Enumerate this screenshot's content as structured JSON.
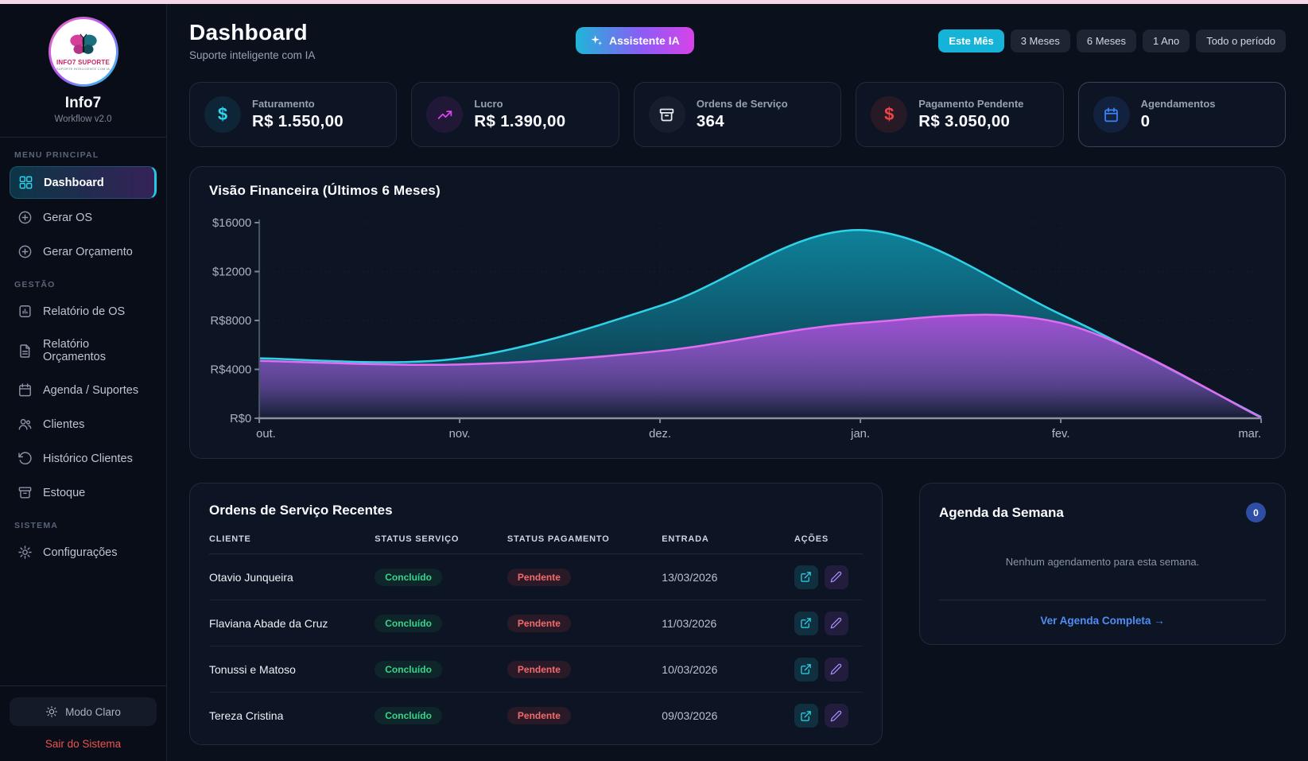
{
  "theme": {
    "top_bar": "#f4d7e9",
    "accent_cyan": "#22c8e6",
    "accent_magenta": "#d946ef",
    "accent_red": "#ef4444",
    "accent_blue": "#3b82f6",
    "success_green": "#35d58b",
    "danger_red": "#f26b6b"
  },
  "sidebar": {
    "logo_line1": "INFO7 SUPORTE",
    "logo_line2": "SUPORTE INTELIGENTE COM IA",
    "brand": "Info7",
    "version": "Workflow v2.0",
    "sections": [
      {
        "label": "MENU PRINCIPAL",
        "items": [
          {
            "label": "Dashboard",
            "icon": "dashboard-grid-icon",
            "active": true
          },
          {
            "label": "Gerar OS",
            "icon": "plus-circle-icon",
            "active": false
          },
          {
            "label": "Gerar Orçamento",
            "icon": "plus-circle-icon",
            "active": false
          }
        ]
      },
      {
        "label": "GESTÃO",
        "items": [
          {
            "label": "Relatório de OS",
            "icon": "report-icon",
            "active": false
          },
          {
            "label": "Relatório Orçamentos",
            "icon": "file-text-icon",
            "active": false
          },
          {
            "label": "Agenda / Suportes",
            "icon": "calendar-icon",
            "active": false
          },
          {
            "label": "Clientes",
            "icon": "users-icon",
            "active": false
          },
          {
            "label": "Histórico Clientes",
            "icon": "history-icon",
            "active": false
          },
          {
            "label": "Estoque",
            "icon": "archive-icon",
            "active": false
          }
        ]
      },
      {
        "label": "SISTEMA",
        "items": [
          {
            "label": "Configurações",
            "icon": "gear-icon",
            "active": false
          }
        ]
      }
    ],
    "theme_toggle": "Modo Claro",
    "logout": "Sair do Sistema"
  },
  "header": {
    "title": "Dashboard",
    "subtitle": "Suporte inteligente com IA",
    "assistant_button": "Assistente IA"
  },
  "filters": {
    "options": [
      {
        "label": "Este Mês",
        "active": true
      },
      {
        "label": "3 Meses",
        "active": false
      },
      {
        "label": "6 Meses",
        "active": false
      },
      {
        "label": "1 Ano",
        "active": false
      },
      {
        "label": "Todo o período",
        "active": false
      }
    ]
  },
  "stats": [
    {
      "label": "Faturamento",
      "value": "R$ 1.550,00",
      "icon": "dollar-icon"
    },
    {
      "label": "Lucro",
      "value": "R$ 1.390,00",
      "icon": "trending-up-icon"
    },
    {
      "label": "Ordens de Serviço",
      "value": "364",
      "icon": "archive-icon"
    },
    {
      "label": "Pagamento Pendente",
      "value": "R$ 3.050,00",
      "icon": "dollar-icon"
    },
    {
      "label": "Agendamentos",
      "value": "0",
      "icon": "calendar-icon"
    }
  ],
  "chart_data": {
    "type": "area",
    "title": "Visão Financeira (Últimos 6 Meses)",
    "x": [
      "out.",
      "nov.",
      "dez.",
      "jan.",
      "fev.",
      "mar."
    ],
    "series": [
      {
        "name": "faturamento",
        "color": "#2fd3e8",
        "fill_top": "#0e87a0",
        "values": [
          4900,
          4900,
          9200,
          15400,
          8500,
          100
        ]
      },
      {
        "name": "lucro",
        "color": "#e06df2",
        "fill_top": "#a94fd6",
        "values": [
          4700,
          4400,
          5500,
          7800,
          7800,
          60
        ]
      }
    ],
    "y_ticks": [
      {
        "value": 0,
        "label": "R$0"
      },
      {
        "value": 4000,
        "label": "R$4000"
      },
      {
        "value": 8000,
        "label": "R$8000"
      },
      {
        "value": 12000,
        "label": "$12000"
      },
      {
        "value": 16000,
        "label": "$16000"
      }
    ],
    "ylim": [
      0,
      16000
    ],
    "grid": "dotted",
    "legend": "none"
  },
  "orders": {
    "title": "Ordens de Serviço Recentes",
    "columns": [
      "CLIENTE",
      "STATUS SERVIÇO",
      "STATUS PAGAMENTO",
      "ENTRADA",
      "AÇÕES"
    ],
    "rows": [
      {
        "cliente": "Otavio Junqueira",
        "status_servico": "Concluído",
        "status_pagamento": "Pendente",
        "entrada": "13/03/2026"
      },
      {
        "cliente": "Flaviana Abade da Cruz",
        "status_servico": "Concluído",
        "status_pagamento": "Pendente",
        "entrada": "11/03/2026"
      },
      {
        "cliente": "Tonussi e Matoso",
        "status_servico": "Concluído",
        "status_pagamento": "Pendente",
        "entrada": "10/03/2026"
      },
      {
        "cliente": "Tereza Cristina",
        "status_servico": "Concluído",
        "status_pagamento": "Pendente",
        "entrada": "09/03/2026"
      }
    ]
  },
  "agenda": {
    "title": "Agenda da Semana",
    "badge": "0",
    "empty_message": "Nenhum agendamento para esta semana.",
    "link": "Ver Agenda Completa →"
  }
}
